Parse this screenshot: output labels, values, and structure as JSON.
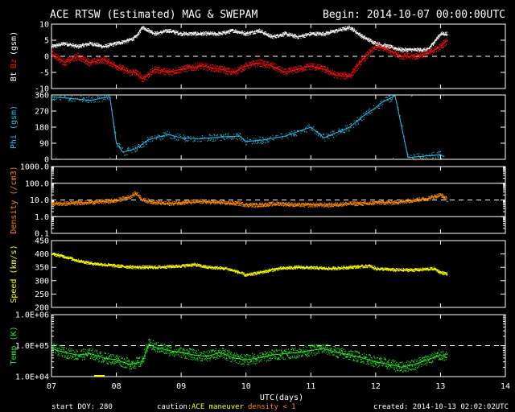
{
  "header": {
    "title": "ACE RTSW (Estimated) MAG & SWEPAM",
    "begin": "Begin: 2014-10-07 00:00:00UTC"
  },
  "footer": {
    "start_doy": "start DOY: 280",
    "caution_label": "caution:",
    "caution_maneuver": "ACE maneuver",
    "caution_density": "density < 1",
    "created": "created: 2014-10-13 02:02:02UTC"
  },
  "colors": {
    "bt": "#ffffff",
    "bz": "#ff1010",
    "phi": "#22c4ee",
    "density": "#ff8c00",
    "speed": "#ffff00",
    "temp": "#22ee22",
    "maneuver": "#ffff00",
    "density_warn": "#ff8c00"
  },
  "chart_data": [
    {
      "type": "line",
      "ylabel": "Bt Bz (gsm)",
      "ylabel_parts": [
        "Bt",
        "Bz",
        "(gsm)"
      ],
      "ylim": [
        -10,
        10
      ],
      "yticks": [
        "10",
        "5",
        "0",
        "-5",
        "-10"
      ],
      "yticks_values": [
        10,
        5,
        0,
        -5,
        -10
      ],
      "series": [
        {
          "name": "Bt",
          "x": [
            7.0,
            7.2,
            7.4,
            7.6,
            7.8,
            8.0,
            8.2,
            8.3,
            8.4,
            8.6,
            8.8,
            9.0,
            9.3,
            9.6,
            9.8,
            10.0,
            10.2,
            10.4,
            10.6,
            10.8,
            11.0,
            11.2,
            11.4,
            11.6,
            11.8,
            12.0,
            12.2,
            12.4,
            12.6,
            12.8,
            13.0,
            13.1
          ],
          "y": [
            3,
            4,
            3,
            4,
            3,
            4,
            5,
            6,
            9,
            7,
            8,
            7,
            7,
            7,
            8,
            7,
            8,
            6,
            7,
            6,
            7,
            7,
            8,
            9,
            6,
            4,
            3,
            2,
            2,
            2,
            7,
            7
          ]
        },
        {
          "name": "Bz",
          "x": [
            7.0,
            7.2,
            7.4,
            7.6,
            7.8,
            8.0,
            8.2,
            8.3,
            8.4,
            8.6,
            8.8,
            9.0,
            9.3,
            9.6,
            9.8,
            10.0,
            10.2,
            10.4,
            10.6,
            10.8,
            11.0,
            11.2,
            11.4,
            11.6,
            11.8,
            12.0,
            12.2,
            12.4,
            12.6,
            12.8,
            13.0,
            13.1
          ],
          "y": [
            1,
            -2,
            0,
            -2,
            -1,
            -3,
            -5,
            -5,
            -7,
            -4,
            -5,
            -4,
            -3,
            -4,
            -5,
            -3,
            -2,
            -3,
            -5,
            -4,
            -3,
            -4,
            -6,
            -6,
            -1,
            3,
            2,
            0,
            0,
            1,
            3,
            5
          ]
        }
      ]
    },
    {
      "type": "scatter",
      "ylabel": "Phi (gsm)",
      "ylim": [
        0,
        360
      ],
      "yticks": [
        "360",
        "270",
        "180",
        "90",
        "0"
      ],
      "yticks_values": [
        360,
        270,
        180,
        90,
        0
      ],
      "series": [
        {
          "name": "Phi",
          "x": [
            7.0,
            7.3,
            7.6,
            7.9,
            8.0,
            8.1,
            8.3,
            8.5,
            8.8,
            9.0,
            9.3,
            9.6,
            9.9,
            10.0,
            10.3,
            10.6,
            11.0,
            11.2,
            11.4,
            11.6,
            11.8,
            12.0,
            12.1,
            12.3,
            12.5,
            12.8,
            13.0,
            13.05
          ],
          "y": [
            350,
            340,
            330,
            350,
            90,
            40,
            60,
            110,
            140,
            120,
            115,
            125,
            130,
            100,
            110,
            130,
            180,
            120,
            150,
            180,
            240,
            290,
            320,
            355,
            10,
            20,
            25,
            15
          ]
        }
      ]
    },
    {
      "type": "line",
      "ylabel": "Density (/cm3)",
      "yscale": "log",
      "ylim": [
        0.1,
        1000
      ],
      "yticks": [
        "1000.0",
        "100.0",
        "10.0",
        "1.0",
        "0.1"
      ],
      "yticks_values": [
        1000,
        100,
        10,
        1,
        0.1
      ],
      "series": [
        {
          "name": "Density",
          "x": [
            7.0,
            7.2,
            7.5,
            7.8,
            8.0,
            8.2,
            8.3,
            8.4,
            8.6,
            8.8,
            9.0,
            9.3,
            9.6,
            9.9,
            10.0,
            10.2,
            10.5,
            10.8,
            11.0,
            11.3,
            11.6,
            11.9,
            12.0,
            12.3,
            12.6,
            12.8,
            13.0,
            13.1
          ],
          "y": [
            6,
            6,
            7,
            8,
            9,
            15,
            25,
            10,
            7,
            6,
            7,
            8,
            7,
            6,
            5,
            5,
            6,
            5,
            5,
            5,
            6,
            6,
            7,
            7,
            10,
            12,
            20,
            10
          ]
        }
      ]
    },
    {
      "type": "line",
      "ylabel": "Speed (km/s)",
      "ylim": [
        200,
        450
      ],
      "yticks": [
        "450",
        "400",
        "350",
        "300",
        "250",
        "200"
      ],
      "yticks_values": [
        450,
        400,
        350,
        300,
        250,
        200
      ],
      "series": [
        {
          "name": "Speed",
          "x": [
            7.0,
            7.2,
            7.4,
            7.6,
            7.8,
            8.0,
            8.3,
            8.6,
            9.0,
            9.2,
            9.4,
            9.7,
            9.9,
            10.0,
            10.2,
            10.5,
            10.8,
            11.0,
            11.3,
            11.6,
            11.9,
            12.0,
            12.3,
            12.6,
            12.9,
            13.0,
            13.1
          ],
          "y": [
            400,
            390,
            375,
            365,
            360,
            355,
            350,
            350,
            355,
            360,
            350,
            345,
            330,
            320,
            330,
            345,
            350,
            348,
            345,
            350,
            355,
            345,
            340,
            340,
            345,
            330,
            325
          ]
        }
      ]
    },
    {
      "type": "line",
      "ylabel": "Temp (K)",
      "yscale": "log",
      "ylim": [
        10000,
        1000000
      ],
      "yticks": [
        "1.0E+06",
        "1.0E+05",
        "1.0E+04"
      ],
      "yticks_values": [
        1000000,
        100000,
        10000
      ],
      "series": [
        {
          "name": "Temp",
          "x": [
            7.0,
            7.2,
            7.4,
            7.6,
            7.8,
            8.0,
            8.2,
            8.4,
            8.5,
            8.6,
            8.8,
            9.0,
            9.2,
            9.4,
            9.6,
            9.8,
            10.0,
            10.2,
            10.4,
            10.6,
            10.8,
            11.0,
            11.2,
            11.4,
            11.6,
            11.8,
            12.0,
            12.2,
            12.4,
            12.6,
            12.8,
            13.0,
            13.1
          ],
          "y": [
            80000,
            60000,
            50000,
            55000,
            40000,
            35000,
            25000,
            30000,
            110000,
            90000,
            70000,
            60000,
            50000,
            45000,
            60000,
            40000,
            35000,
            40000,
            50000,
            55000,
            60000,
            70000,
            80000,
            60000,
            50000,
            40000,
            30000,
            25000,
            20000,
            25000,
            35000,
            50000,
            40000
          ]
        }
      ]
    }
  ],
  "xaxis": {
    "label": "UTC(days)",
    "ticks": [
      "07",
      "08",
      "09",
      "10",
      "11",
      "12",
      "13",
      "14"
    ],
    "tick_values": [
      7,
      8,
      9,
      10,
      11,
      12,
      13,
      14
    ],
    "xlim": [
      7,
      14
    ]
  }
}
